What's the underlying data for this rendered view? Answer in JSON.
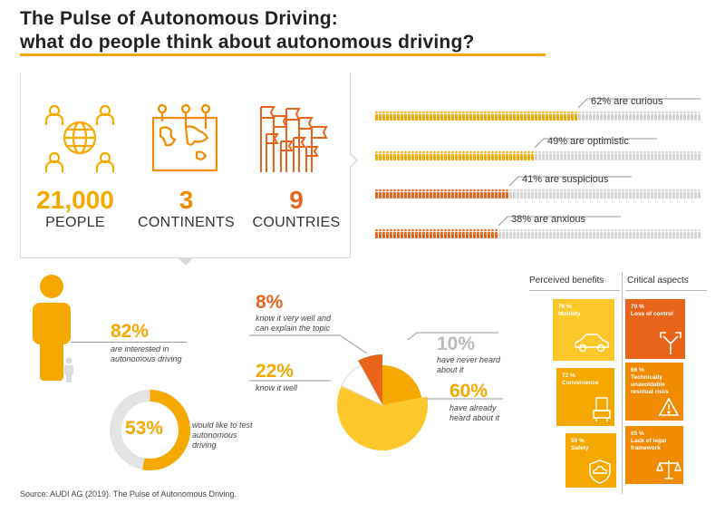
{
  "header": {
    "title_line1": "The Pulse of Autonomous Driving:",
    "title_line2": "what do people think about autonomous driving?"
  },
  "stats": [
    {
      "value": "21,000",
      "label": "PEOPLE",
      "icon": "globe-people-icon",
      "color": "#f5a800"
    },
    {
      "value": "3",
      "label": "CONTINENTS",
      "icon": "world-map-icon",
      "color": "#f08a00"
    },
    {
      "value": "9",
      "label": "COUNTRIES",
      "icon": "flags-icon",
      "color": "#e8641b"
    }
  ],
  "attitudes": [
    {
      "label": "62% are curious",
      "value": 62,
      "color": "#f5a800"
    },
    {
      "label": "49% are optimistic",
      "value": 49,
      "color": "#f5a800"
    },
    {
      "label": "41% are suspicious",
      "value": 41,
      "color": "#e8641b"
    },
    {
      "label": "38% are anxious",
      "value": 38,
      "color": "#e8641b"
    }
  ],
  "interest": {
    "value": "82%",
    "text": "are interested in autonomous driving"
  },
  "test": {
    "value": "53%",
    "text": "would like to test autonomous driving",
    "fraction": 0.53
  },
  "knowledge": [
    {
      "value": "8%",
      "text": "know it very well and can explain the topic"
    },
    {
      "value": "22%",
      "text": "know it well"
    },
    {
      "value": "10%",
      "text": "have never heard about it"
    },
    {
      "value": "60%",
      "text": "have already heard about it"
    }
  ],
  "chart_data": {
    "type": "pie",
    "categories": [
      "know it very well and can explain the topic",
      "know it well",
      "have already heard about it",
      "have never heard about it"
    ],
    "values": [
      8,
      22,
      60,
      10
    ],
    "colors": [
      "#e8641b",
      "#f5a800",
      "#fcc72a",
      "#ffffff"
    ]
  },
  "benefits": {
    "heading": "Perceived benefits",
    "items": [
      {
        "pct": "76 %",
        "label": "Mobility",
        "icon": "car-icon"
      },
      {
        "pct": "72 %",
        "label": "Convenience",
        "icon": "seat-icon"
      },
      {
        "pct": "59 %",
        "label": "Safety",
        "icon": "shield-car-icon"
      }
    ]
  },
  "critical": {
    "heading": "Critical aspects",
    "items": [
      {
        "pct": "70 %",
        "label": "Loss of control",
        "icon": "split-arrows-icon"
      },
      {
        "pct": "66 %",
        "label": "Technically unavoidable residual risks",
        "icon": "warning-icon"
      },
      {
        "pct": "65 %",
        "label": "Lack of legal framework",
        "icon": "scales-icon"
      }
    ]
  },
  "source": "Source: AUDI AG (2019). The Pulse of Autonomous Driving."
}
